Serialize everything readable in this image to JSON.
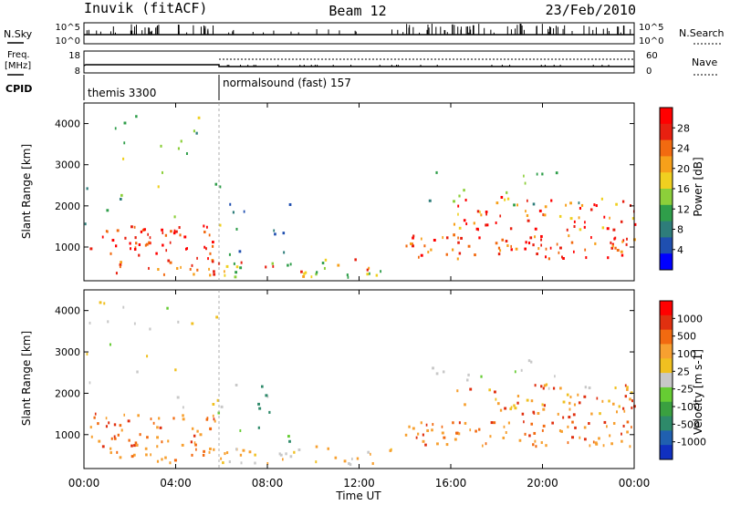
{
  "header": {
    "station": "Inuvik (fitACF)",
    "beam": "Beam 12",
    "date": "23/Feb/2010"
  },
  "summary": {
    "nsky_label": "N.Sky",
    "nsearch_label": "N.Search",
    "nsky_ticks": [
      "10^5",
      "10^0"
    ],
    "nsearch_ticks": [
      "10^5",
      "10^0"
    ],
    "freq_label_1": "Freq.",
    "freq_label_2": "[MHz]",
    "freq_ticks": [
      "18",
      "8"
    ],
    "nave_label": "Nave",
    "nave_ticks": [
      "60",
      "0"
    ],
    "cpid_label": "CPID",
    "cpid_segments": [
      {
        "label": "themis 3300",
        "start_h": 0,
        "end_h": 6
      },
      {
        "label": "normalsound (fast) 157",
        "start_h": 6,
        "end_h": 24
      }
    ]
  },
  "chart_data": [
    {
      "type": "heatmap",
      "name": "power",
      "ylabel": "Slant Range [km]",
      "yticks": [
        1000,
        2000,
        3000,
        4000
      ],
      "ylim": [
        180,
        4500
      ],
      "xlim": [
        0,
        24
      ],
      "colorbar_label": "Power [dB]",
      "colorbar_ticks": [
        "28",
        "24",
        "20",
        "16",
        "12",
        "8",
        "4"
      ],
      "colorbar_colors": [
        "#0000ff",
        "#1f4fb0",
        "#2e7d7a",
        "#2f9e4a",
        "#8ccf3a",
        "#f0d020",
        "#f7a01a",
        "#f26a10",
        "#e82010",
        "#ff0000"
      ]
    },
    {
      "type": "heatmap",
      "name": "velocity",
      "ylabel": "Slant Range [km]",
      "yticks": [
        1000,
        2000,
        3000,
        4000
      ],
      "ylim": [
        180,
        4500
      ],
      "xlim": [
        0,
        24
      ],
      "colorbar_label": "Velocity [m s-1]",
      "colorbar_ticks": [
        "1000",
        "500",
        "100",
        "25",
        "-25",
        "-100",
        "-500",
        "-1000"
      ],
      "colorbar_colors": [
        "#1030c0",
        "#2060b0",
        "#2e8a6a",
        "#3aa040",
        "#66cc33",
        "#c8c8c8",
        "#f0c020",
        "#f7a030",
        "#f26a10",
        "#e03010",
        "#ff0000"
      ]
    }
  ],
  "xaxis": {
    "label": "Time UT",
    "ticks": [
      "00:00",
      "04:00",
      "08:00",
      "12:00",
      "16:00",
      "20:00",
      "00:00"
    ]
  }
}
